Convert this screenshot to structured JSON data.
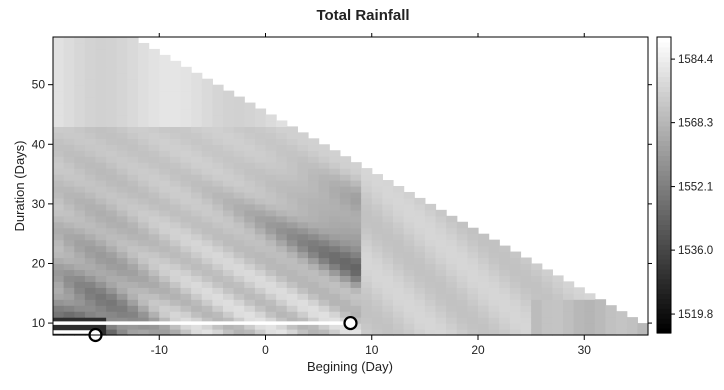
{
  "chart_data": {
    "type": "heatmap",
    "title": "Total Rainfall",
    "xlabel": "Begining (Day)",
    "ylabel": "Duration (Days)",
    "xlim": [
      -20,
      36
    ],
    "ylim": [
      8,
      58
    ],
    "x_ticks": [
      -10,
      0,
      10,
      20,
      30
    ],
    "y_ticks": [
      10,
      20,
      30,
      40,
      50
    ],
    "colorbar": {
      "min": 1515,
      "max": 1590,
      "ticks": [
        1519.8,
        1536.0,
        1552.1,
        1568.3,
        1584.4
      ],
      "tick_labels": [
        "1519.8",
        "1536.0",
        "1552.1",
        "1568.3",
        "1584.4"
      ],
      "low_color": "#000000",
      "high_color": "#ffffff"
    },
    "valid_region": "begin + duration <= 44 (upper-right triangle empty)",
    "markers": [
      {
        "begin": -16,
        "duration": 8,
        "label": ""
      },
      {
        "begin": 8,
        "duration": 10,
        "label": ""
      }
    ],
    "highlight_segments": [
      {
        "from_begin": -20,
        "to_begin": -16,
        "duration": 8.5
      },
      {
        "from_begin": -20,
        "to_begin": 8,
        "duration": 10
      }
    ]
  }
}
